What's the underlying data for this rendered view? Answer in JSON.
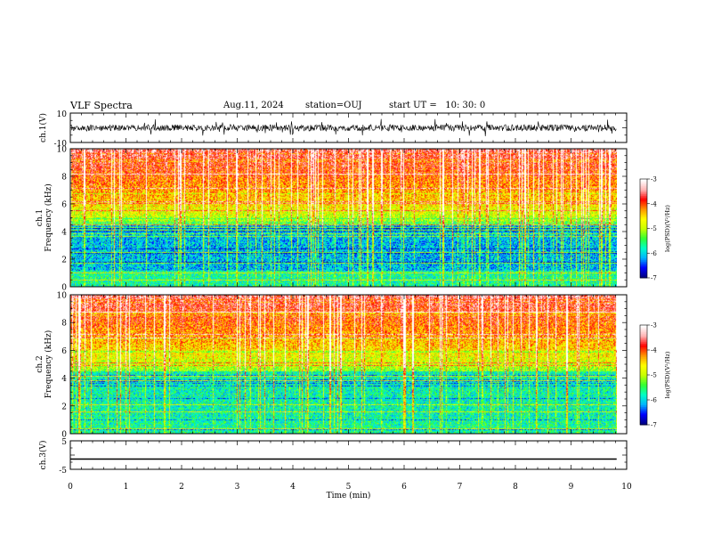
{
  "header": {
    "title": "VLF Spectra",
    "date": "Aug.11, 2024",
    "station": "station=OUJ",
    "start": "start UT =   10: 30: 0"
  },
  "chart_data": [
    {
      "type": "line",
      "name": "ch1-waveform",
      "ylabel": "ch.1(V)",
      "ylim": [
        -10,
        10
      ],
      "tick_labels": [
        "10",
        "-10"
      ],
      "xlim": [
        0,
        10
      ],
      "series": [
        {
          "baseline": 0,
          "noise_range": [
            -3,
            3
          ]
        }
      ]
    },
    {
      "type": "heatmap",
      "name": "ch1-spectrogram",
      "ylabel": "ch.1 Frequency (kHz)",
      "ylim": [
        0,
        10
      ],
      "y_ticks": [
        0,
        2,
        4,
        6,
        8,
        10
      ],
      "xlim": [
        0,
        10
      ],
      "data_x_end": 9.82,
      "colorbar": {
        "label": "log(PSD)(V²/Hz)",
        "range": [
          -7,
          -3
        ],
        "ticks": [
          -3,
          -4,
          -5,
          -6,
          -7
        ],
        "colormap": [
          "#00007f",
          "#0000ff",
          "#00b4ff",
          "#00ffc8",
          "#32ff32",
          "#c8ff00",
          "#ffff00",
          "#ff9600",
          "#ff0000",
          "#ffb4b4",
          "#ffffff"
        ]
      }
    },
    {
      "type": "heatmap",
      "name": "ch2-spectrogram",
      "ylabel": "ch.2 Frequency (kHz)",
      "ylim": [
        0,
        10
      ],
      "y_ticks": [
        0,
        2,
        4,
        6,
        8,
        10
      ],
      "xlim": [
        0,
        10
      ],
      "data_x_end": 9.82,
      "colorbar": {
        "label": "log(PSD)(V²/Hz)",
        "range": [
          -7,
          -3
        ],
        "ticks": [
          -3,
          -4,
          -5,
          -6,
          -7
        ]
      }
    },
    {
      "type": "line",
      "name": "ch3-waveform",
      "ylabel": "ch.3(V)",
      "ylim": [
        -5,
        5
      ],
      "tick_labels": [
        "5",
        "-5"
      ],
      "xlim": [
        0,
        10
      ],
      "x_ticks": [
        0,
        1,
        2,
        3,
        4,
        5,
        6,
        7,
        8,
        9,
        10
      ],
      "xlabel": "Time (min)",
      "series": [
        {
          "x": [
            0,
            9.82
          ],
          "y": [
            -1.4,
            -1.4
          ]
        }
      ]
    }
  ]
}
